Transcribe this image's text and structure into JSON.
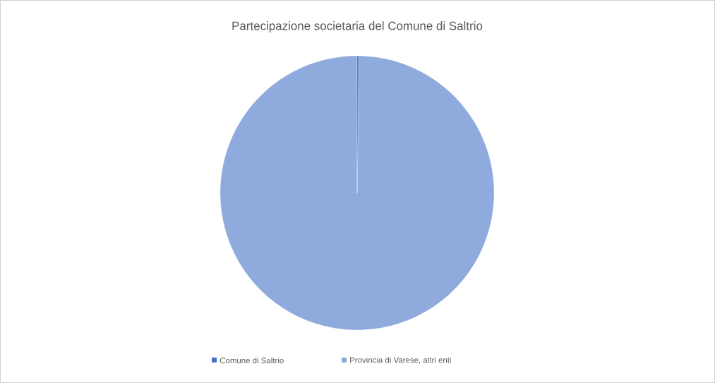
{
  "chart_data": {
    "type": "pie",
    "title": "Partecipazione societaria del Comune di Saltrio",
    "categories": [
      "Comune di Saltrio",
      "Provincia di Varese, altri enti"
    ],
    "values": [
      0.2,
      99.8
    ],
    "colors": [
      "#4472c4",
      "#8faadc"
    ],
    "legend": "bottom"
  }
}
